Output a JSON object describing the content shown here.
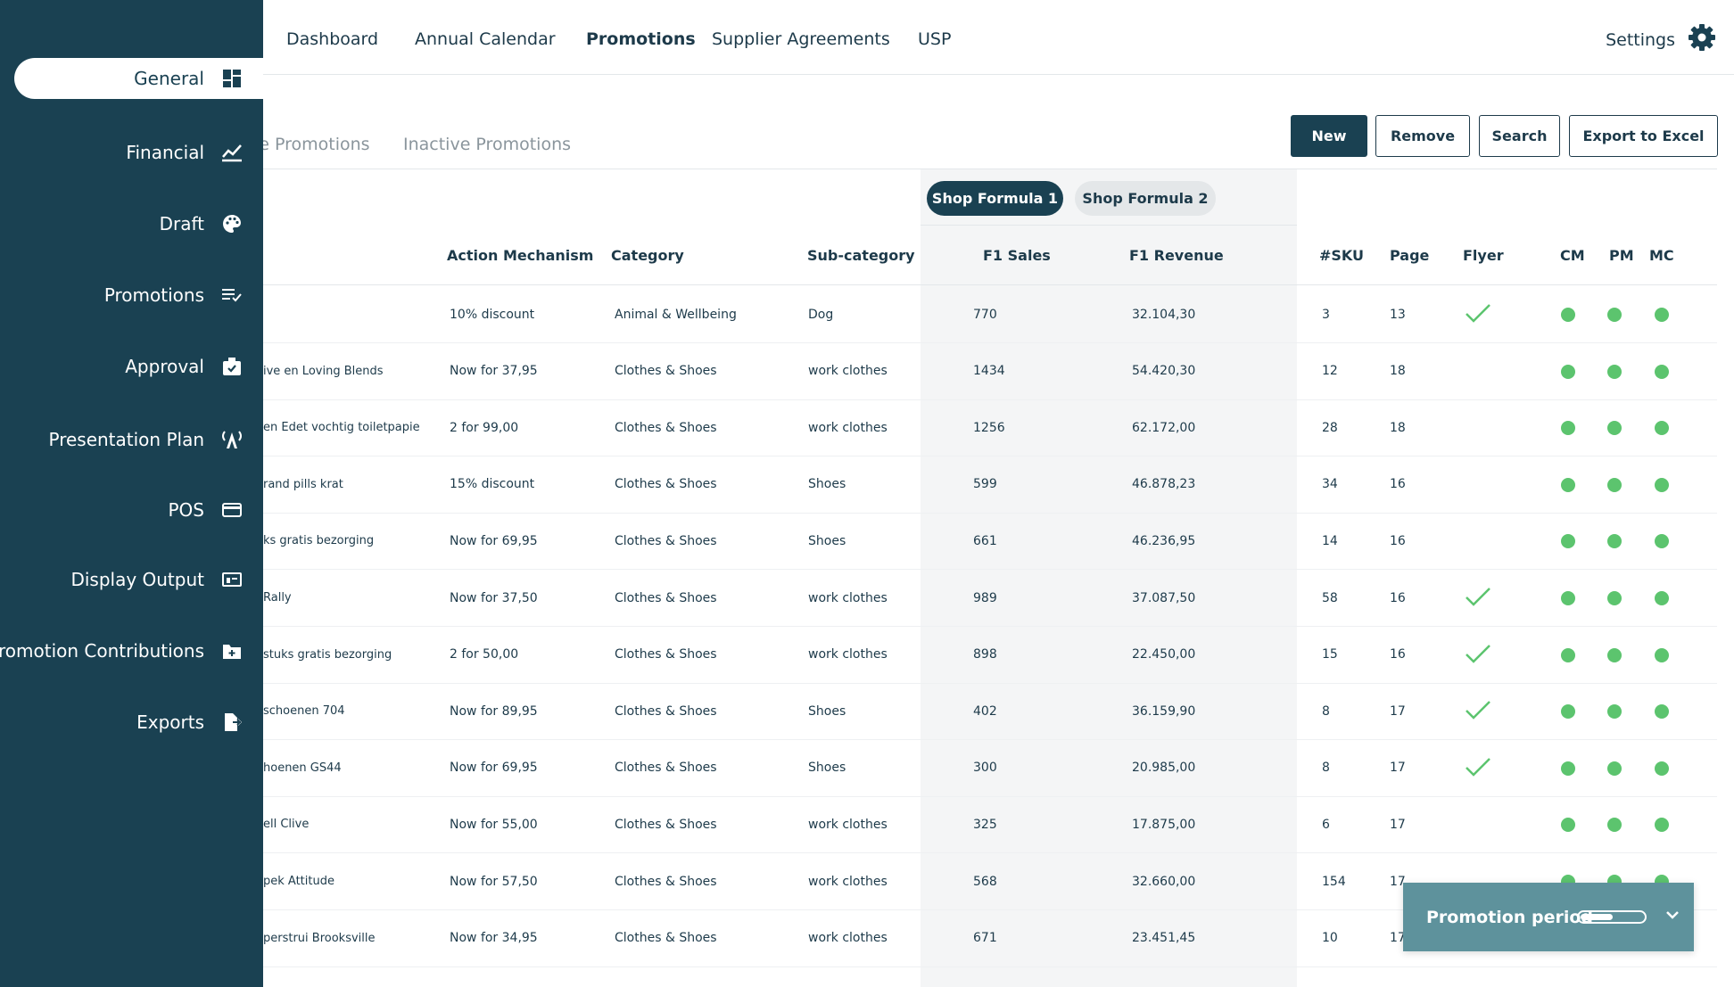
{
  "sidebar": {
    "items": [
      {
        "label": "General",
        "icon": "dashboard-grid-icon",
        "active": true
      },
      {
        "label": "Financial",
        "icon": "line-chart-icon"
      },
      {
        "label": "Draft",
        "icon": "palette-icon"
      },
      {
        "label": "Promotions",
        "icon": "list-check-icon"
      },
      {
        "label": "Approval",
        "icon": "approval-stamp-icon"
      },
      {
        "label": "Presentation Plan",
        "icon": "broadcast-icon"
      },
      {
        "label": "POS",
        "icon": "credit-card-icon"
      },
      {
        "label": "Display Output",
        "icon": "display-icon"
      },
      {
        "label": "Promotion Contributions",
        "icon": "folder-plus-icon"
      },
      {
        "label": "Exports",
        "icon": "export-file-icon"
      }
    ]
  },
  "topnav": {
    "items": [
      "Dashboard",
      "Annual Calendar",
      "Promotions",
      "Supplier Agreements",
      "USP"
    ],
    "active": "Promotions",
    "settings_label": "Settings"
  },
  "subtabs": [
    "le Promotions",
    "Inactive Promotions"
  ],
  "buttons": {
    "new": "New",
    "remove": "Remove",
    "search": "Search",
    "export": "Export to Excel"
  },
  "formula_tabs": [
    "Shop Formula 1",
    "Shop Formula 2"
  ],
  "columns": {
    "action_mechanism": "Action Mechanism",
    "category": "Category",
    "subcategory": "Sub-category",
    "f1_sales": "F1 Sales",
    "f1_revenue": "F1  Revenue",
    "sku": "#SKU",
    "page": "Page",
    "flyer": "Flyer",
    "cm": "CM",
    "pm": "PM",
    "mc": "MC"
  },
  "rows": [
    {
      "name": "",
      "mechanism": "10% discount",
      "category": "Animal & Wellbeing",
      "subcategory": "Dog",
      "sales": "770",
      "revenue": "32.104,30",
      "sku": "3",
      "page": "13",
      "flyer": true
    },
    {
      "name": "ive en Loving Blends",
      "mechanism": "Now for 37,95",
      "category": "Clothes & Shoes",
      "subcategory": "work clothes",
      "sales": "1434",
      "revenue": "54.420,30",
      "sku": "12",
      "page": "18",
      "flyer": false
    },
    {
      "name": "en Edet vochtig toiletpapie",
      "mechanism": "2 for 99,00",
      "category": "Clothes & Shoes",
      "subcategory": "work clothes",
      "sales": "1256",
      "revenue": "62.172,00",
      "sku": "28",
      "page": "18",
      "flyer": false
    },
    {
      "name": "rand pills krat",
      "mechanism": "15% discount",
      "category": "Clothes & Shoes",
      "subcategory": "Shoes",
      "sales": "599",
      "revenue": "46.878,23",
      "sku": "34",
      "page": "16",
      "flyer": false
    },
    {
      "name": "ks gratis bezorging",
      "mechanism": "Now for 69,95",
      "category": "Clothes & Shoes",
      "subcategory": "Shoes",
      "sales": "661",
      "revenue": "46.236,95",
      "sku": "14",
      "page": "16",
      "flyer": false
    },
    {
      "name": "Rally",
      "mechanism": "Now for 37,50",
      "category": "Clothes & Shoes",
      "subcategory": "work clothes",
      "sales": "989",
      "revenue": "37.087,50",
      "sku": "58",
      "page": "16",
      "flyer": true
    },
    {
      "name": "stuks gratis bezorging",
      "mechanism": "2 for 50,00",
      "category": "Clothes & Shoes",
      "subcategory": "work clothes",
      "sales": "898",
      "revenue": "22.450,00",
      "sku": "15",
      "page": "16",
      "flyer": true
    },
    {
      "name": "schoenen 704",
      "mechanism": "Now for 89,95",
      "category": "Clothes & Shoes",
      "subcategory": "Shoes",
      "sales": "402",
      "revenue": "36.159,90",
      "sku": "8",
      "page": "17",
      "flyer": true
    },
    {
      "name": "hoenen GS44",
      "mechanism": "Now for  69,95",
      "category": "Clothes & Shoes",
      "subcategory": "Shoes",
      "sales": "300",
      "revenue": "20.985,00",
      "sku": "8",
      "page": "17",
      "flyer": true
    },
    {
      "name": "ell Clive",
      "mechanism": "Now for  55,00",
      "category": "Clothes & Shoes",
      "subcategory": "work clothes",
      "sales": "325",
      "revenue": "17.875,00",
      "sku": "6",
      "page": "17",
      "flyer": false
    },
    {
      "name": "pek Attitude",
      "mechanism": "Now for  57,50",
      "category": "Clothes & Shoes",
      "subcategory": "work clothes",
      "sales": "568",
      "revenue": "32.660,00",
      "sku": "154",
      "page": "17",
      "flyer": false
    },
    {
      "name": "perstrui Brooksville",
      "mechanism": "Now for 34,95",
      "category": "Clothes & Shoes",
      "subcategory": "work clothes",
      "sales": "671",
      "revenue": "23.451,45",
      "sku": "10",
      "page": "17",
      "flyer": false
    }
  ],
  "promotion_period": {
    "label": "Promotion period"
  },
  "colors": {
    "sidebar_bg": "#1a4152",
    "status_green": "#5cc46e",
    "promo_panel_bg": "#5e929c"
  }
}
